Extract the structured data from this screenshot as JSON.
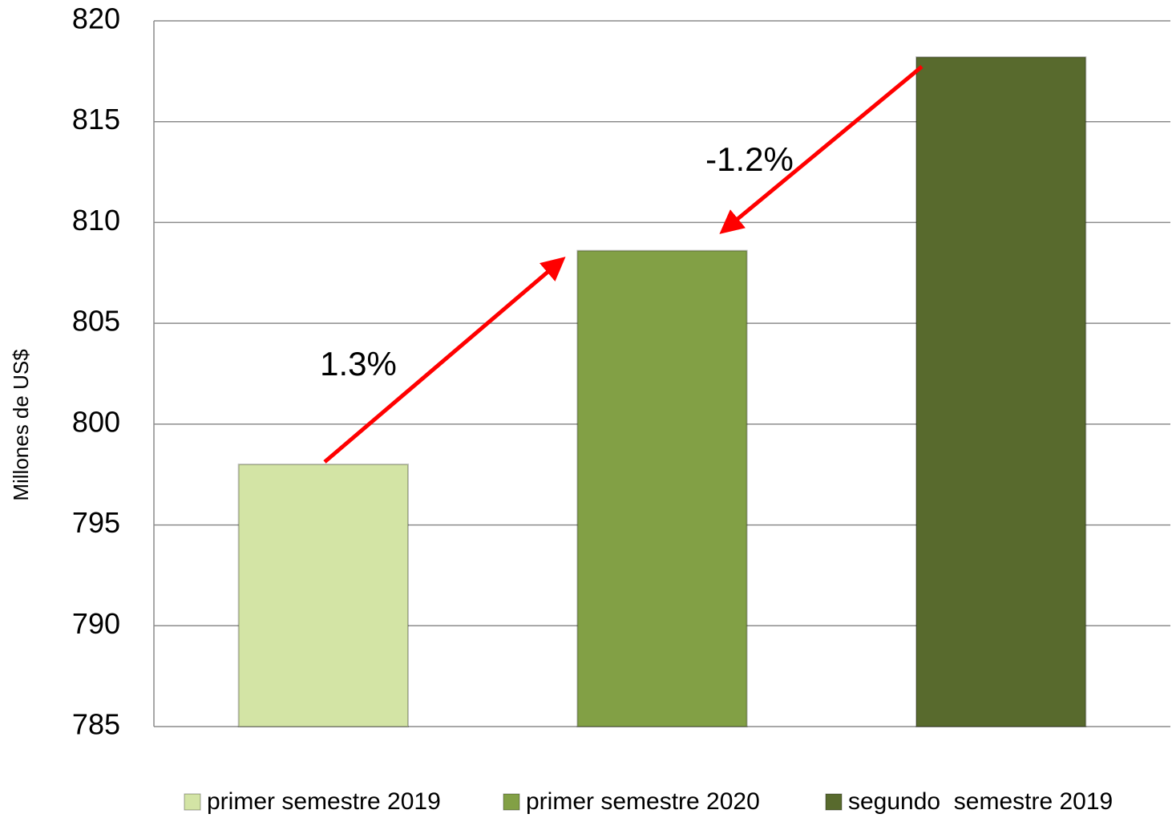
{
  "chart_data": {
    "type": "bar",
    "y_label": "Millones de US$",
    "categories": [
      null
    ],
    "series": [
      {
        "name": "primer semestre 2019",
        "color": "#d3e4a5",
        "values": [
          798.0
        ]
      },
      {
        "name": "primer semestre 2020",
        "color": "#82a045",
        "values": [
          808.6
        ]
      },
      {
        "name": "segundo  semestre 2019",
        "color": "#586a2d",
        "values": [
          818.2
        ]
      }
    ],
    "annotations": [
      "1.3%",
      "-1.2%"
    ],
    "ylim": [
      785,
      820
    ],
    "yticks": [
      785,
      790,
      795,
      800,
      805,
      810,
      815,
      820
    ],
    "grid": true,
    "legend": "bottom"
  }
}
